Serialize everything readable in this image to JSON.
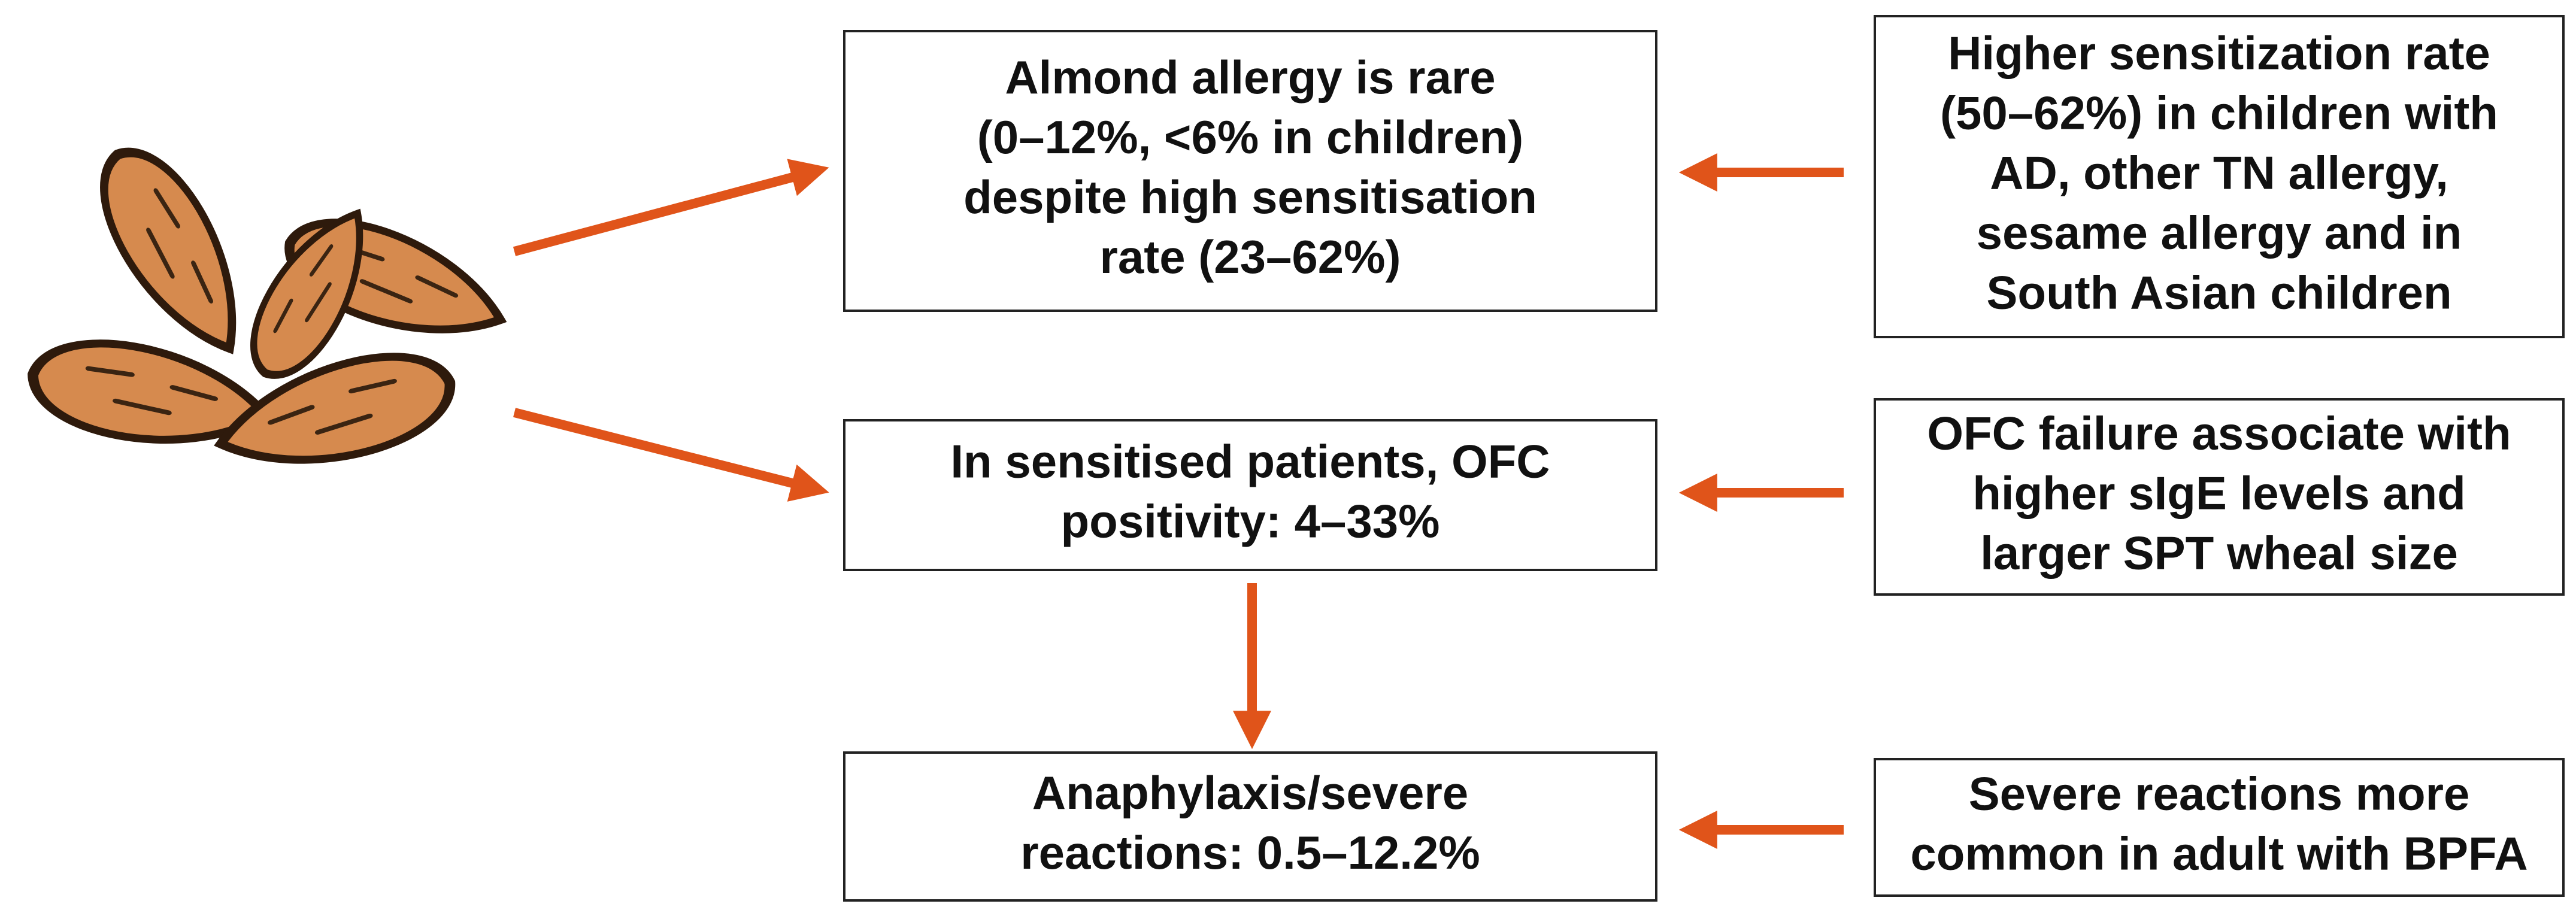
{
  "nodes": [
    {
      "lines": [
        "Almond allergy is rare",
        "(0–12%, <6% in children)",
        "despite high sensitisation",
        "rate (23–62%)"
      ]
    },
    {
      "lines": [
        "In sensitised patients, OFC",
        "positivity: 4–33%"
      ]
    },
    {
      "lines": [
        "Anaphylaxis/severe",
        "reactions: 0.5–12.2%"
      ]
    },
    {
      "lines": [
        "Higher sensitization rate",
        "(50–62%) in children with",
        "AD, other TN allergy,",
        "sesame allergy and in",
        "South Asian children"
      ]
    },
    {
      "lines": [
        "OFC failure associate with",
        "higher sIgE levels and",
        "larger SPT wheal size"
      ]
    },
    {
      "lines": [
        "Severe reactions more",
        "common in adult with BPFA"
      ]
    }
  ]
}
